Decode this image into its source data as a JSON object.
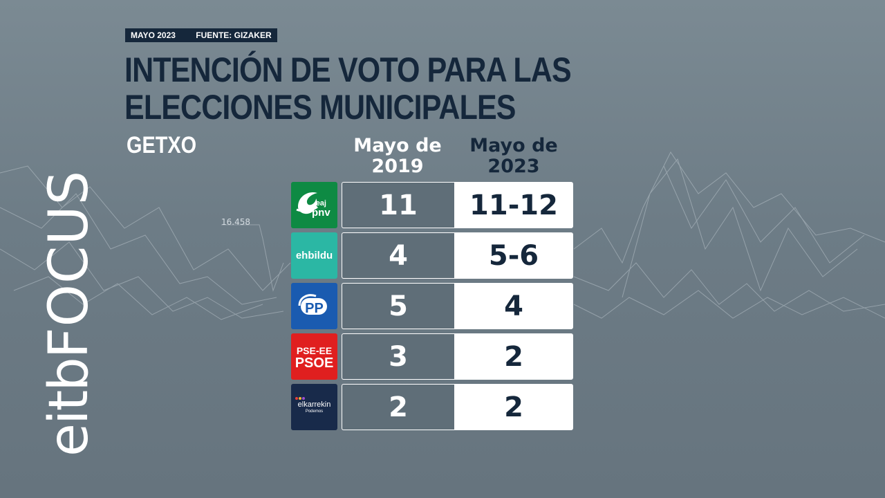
{
  "header": {
    "date": "MAYO 2023",
    "source": "FUENTE: GIZAKER"
  },
  "title": "INTENCIÓN DE VOTO PARA LAS ELECCIONES MUNICIPALES",
  "subtitle": "GETXO",
  "background_label": "16.458",
  "brand": {
    "eitb": "eitb",
    "focus": "FOCUS"
  },
  "columns": {
    "y2019": "Mayo de 2019",
    "y2023": "Mayo de 2023"
  },
  "rows": [
    {
      "party_logo": "pnv-logo",
      "logo_text_1": "eaj",
      "logo_text_2": "pnv",
      "color": "#0e8a43",
      "y2019": "11",
      "y2023": "11-12"
    },
    {
      "party_logo": "ehbildu-logo",
      "logo_text_1": "ehbildu",
      "color": "#2bb7a4",
      "y2019": "4",
      "y2023": "5-6"
    },
    {
      "party_logo": "pp-logo",
      "logo_text_1": "PP",
      "color": "#1a5bb0",
      "y2019": "5",
      "y2023": "4"
    },
    {
      "party_logo": "psoe-logo",
      "logo_text_1": "PSE-EE",
      "logo_text_2": "PSOE",
      "color": "#e01f1f",
      "y2019": "3",
      "y2023": "2"
    },
    {
      "party_logo": "elkarrekin-podemos-logo",
      "logo_text_1": "elkarrekin",
      "logo_text_2": "Podemos",
      "color": "#182a4a",
      "y2019": "2",
      "y2023": "2"
    }
  ]
}
